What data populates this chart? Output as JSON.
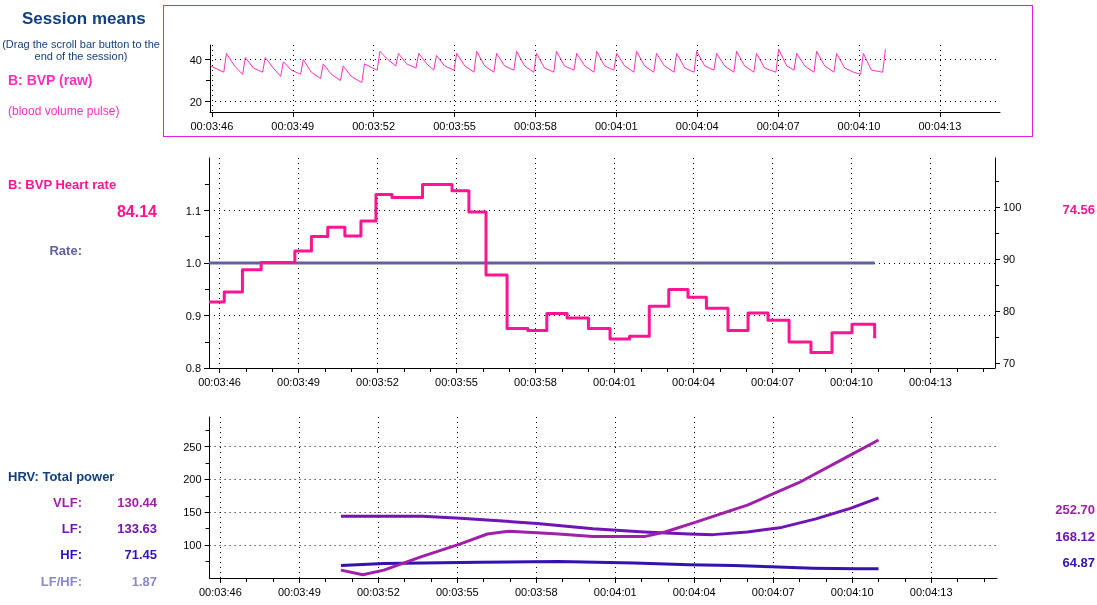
{
  "chart_data": [
    {
      "type": "line",
      "title": "Session means",
      "subtitle": "(Drag the scroll bar button to the end of the session)",
      "annotations": [
        "(blood volume pulse)"
      ],
      "grid": true,
      "marker": "none",
      "xlim": [
        225.93,
        255.23
      ],
      "xticks": [
        {
          "value": 226,
          "label": "00:03:46"
        },
        {
          "value": 229,
          "label": "00:03:49"
        },
        {
          "value": 232,
          "label": "00:03:52"
        },
        {
          "value": 235,
          "label": "00:03:55"
        },
        {
          "value": 238,
          "label": "00:03:58"
        },
        {
          "value": 241,
          "label": "00:04:01"
        },
        {
          "value": 244,
          "label": "00:04:04"
        },
        {
          "value": 247,
          "label": "00:04:07"
        },
        {
          "value": 250,
          "label": "00:04:10"
        },
        {
          "value": 253,
          "label": "00:04:13"
        }
      ],
      "ylim": [
        15,
        47
      ],
      "yticks": [
        20,
        {
          "value": 30,
          "label": null
        },
        40
      ],
      "series": [
        {
          "name": "B: BVP (raw)",
          "color": "#ff30c0",
          "x": [
            225.95,
            226.44,
            226.54,
            226.84,
            227.14,
            227.24,
            227.54,
            227.88,
            227.98,
            228.28,
            228.55,
            228.65,
            228.95,
            229.29,
            229.39,
            229.69,
            230.03,
            230.13,
            230.43,
            230.77,
            230.87,
            231.17,
            231.56,
            231.66,
            231.96,
            232.13,
            232.23,
            232.53,
            232.82,
            232.92,
            233.22,
            233.57,
            233.67,
            233.97,
            234.23,
            234.33,
            234.63,
            234.98,
            235.08,
            235.38,
            235.72,
            235.82,
            236.12,
            236.46,
            236.56,
            236.86,
            237.2,
            237.3,
            237.6,
            237.94,
            238.04,
            238.34,
            238.68,
            238.78,
            239.08,
            239.43,
            239.53,
            239.83,
            240.17,
            240.27,
            240.57,
            240.91,
            241.01,
            241.31,
            241.65,
            241.75,
            242.05,
            242.39,
            242.49,
            242.79,
            243.14,
            243.24,
            243.54,
            243.88,
            243.98,
            244.28,
            244.62,
            244.72,
            245.02,
            245.36,
            245.46,
            245.76,
            246.1,
            246.2,
            246.5,
            246.92,
            247.02,
            247.32,
            247.59,
            247.69,
            247.99,
            248.33,
            248.43,
            248.73,
            249.07,
            249.17,
            249.47,
            249.8,
            250.06,
            250.16,
            250.46,
            250.88,
            250.98
          ],
          "values": [
            37,
            34,
            43,
            37,
            33,
            41,
            36,
            34,
            41,
            36,
            32,
            39,
            35,
            33,
            40,
            34,
            31,
            38,
            33,
            30,
            37,
            32,
            29,
            38,
            36,
            35,
            44,
            40,
            37,
            43,
            38,
            36,
            43,
            38,
            35,
            42,
            37,
            35,
            43,
            37,
            34,
            44,
            37,
            34,
            43,
            37,
            35,
            44,
            37,
            34,
            43,
            36,
            34,
            44,
            37,
            35,
            43,
            37,
            34,
            44,
            37,
            35,
            43,
            37,
            34,
            44,
            37,
            34,
            43,
            37,
            34,
            43,
            36,
            34,
            44,
            37,
            35,
            43,
            37,
            34,
            44,
            37,
            34,
            43,
            36,
            34,
            45,
            37,
            35,
            43,
            37,
            34,
            44,
            37,
            34,
            43,
            36,
            34,
            33,
            43,
            35,
            34,
            45
          ]
        }
      ]
    },
    {
      "type": "step",
      "grid": true,
      "marker": "none",
      "annotations": [
        "84.14",
        "74.56"
      ],
      "xlim": [
        225.6,
        255.45
      ],
      "xticks": [
        {
          "value": 226,
          "label": "00:03:46"
        },
        {
          "value": 227,
          "label": null
        },
        {
          "value": 228,
          "label": null
        },
        {
          "value": 229,
          "label": "00:03:49"
        },
        {
          "value": 230,
          "label": null
        },
        {
          "value": 231,
          "label": null
        },
        {
          "value": 232,
          "label": "00:03:52"
        },
        {
          "value": 233,
          "label": null
        },
        {
          "value": 234,
          "label": null
        },
        {
          "value": 235,
          "label": "00:03:55"
        },
        {
          "value": 236,
          "label": null
        },
        {
          "value": 237,
          "label": null
        },
        {
          "value": 238,
          "label": "00:03:58"
        },
        {
          "value": 239,
          "label": null
        },
        {
          "value": 240,
          "label": null
        },
        {
          "value": 241,
          "label": "00:04:01"
        },
        {
          "value": 242,
          "label": null
        },
        {
          "value": 243,
          "label": null
        },
        {
          "value": 244,
          "label": "00:04:04"
        },
        {
          "value": 245,
          "label": null
        },
        {
          "value": 246,
          "label": null
        },
        {
          "value": 247,
          "label": "00:04:07"
        },
        {
          "value": 248,
          "label": null
        },
        {
          "value": 249,
          "label": null
        },
        {
          "value": 250,
          "label": "00:04:10"
        },
        {
          "value": 251,
          "label": null
        },
        {
          "value": 252,
          "label": null
        },
        {
          "value": 253,
          "label": "00:04:13"
        },
        {
          "value": 254,
          "label": null
        },
        {
          "value": 255,
          "label": null
        }
      ],
      "ylim": [
        0.8,
        1.2
      ],
      "yticks": [
        0.8,
        {
          "value": 0.85,
          "label": null
        },
        0.9,
        {
          "value": 0.95,
          "label": null
        },
        {
          "value": 1.0,
          "label": "1.0"
        },
        {
          "value": 1.05,
          "label": null
        },
        1.1,
        {
          "value": 1.15,
          "label": null
        }
      ],
      "y2lim": [
        69,
        109.4
      ],
      "y2ticks": [
        70,
        {
          "value": 75,
          "label": null
        },
        80,
        {
          "value": 85,
          "label": null
        },
        90,
        {
          "value": 95,
          "label": null
        },
        100,
        {
          "value": 105,
          "label": null
        }
      ],
      "series": [
        {
          "name": "B: BVP Heart rate",
          "axis": "y2",
          "color": "#ff1493",
          "x": [
            225.6,
            226.18,
            226.87,
            227.58,
            228.86,
            229.49,
            230.11,
            230.76,
            231.37,
            231.94,
            232.55,
            233.71,
            234.83,
            235.47,
            236.12,
            236.92,
            237.71,
            238.43,
            239.2,
            240.01,
            240.83,
            241.57,
            242.32,
            243.06,
            243.79,
            244.49,
            245.31,
            246.07,
            246.83,
            247.63,
            248.46,
            249.26,
            250.02,
            250.88
          ],
          "values": [
            81.7,
            83.6,
            87.9,
            89.3,
            91.5,
            94.3,
            96.1,
            94.4,
            97.3,
            102.4,
            101.8,
            104.3,
            103.1,
            99.0,
            86.9,
            76.6,
            76.2,
            79.5,
            78.6,
            76.6,
            74.6,
            75.1,
            80.9,
            84.1,
            82.6,
            80.5,
            76.2,
            79.6,
            78.2,
            74.0,
            72.0,
            75.8,
            77.4,
            74.7
          ]
        },
        {
          "name": "Rate:",
          "type": "line",
          "color": "#6062a0",
          "x": [
            225.6,
            250.88
          ],
          "values": [
            1.0,
            1.0
          ]
        }
      ]
    },
    {
      "type": "line",
      "title": "HRV: Total power",
      "grid": true,
      "marker": "none",
      "annotations": [
        "130.44",
        "133.63",
        "71.45",
        "LF/HF:",
        "1.87",
        "252.70",
        "168.12",
        "64.87"
      ],
      "xlim": [
        225.59,
        255.5
      ],
      "xticks": [
        {
          "value": 226,
          "label": "00:03:46"
        },
        {
          "value": 227,
          "label": null
        },
        {
          "value": 228,
          "label": null
        },
        {
          "value": 229,
          "label": "00:03:49"
        },
        {
          "value": 230,
          "label": null
        },
        {
          "value": 231,
          "label": null
        },
        {
          "value": 232,
          "label": "00:03:52"
        },
        {
          "value": 233,
          "label": null
        },
        {
          "value": 234,
          "label": null
        },
        {
          "value": 235,
          "label": "00:03:55"
        },
        {
          "value": 236,
          "label": null
        },
        {
          "value": 237,
          "label": null
        },
        {
          "value": 238,
          "label": "00:03:58"
        },
        {
          "value": 239,
          "label": null
        },
        {
          "value": 240,
          "label": null
        },
        {
          "value": 241,
          "label": "00:04:01"
        },
        {
          "value": 242,
          "label": null
        },
        {
          "value": 243,
          "label": null
        },
        {
          "value": 244,
          "label": "00:04:04"
        },
        {
          "value": 245,
          "label": null
        },
        {
          "value": 246,
          "label": null
        },
        {
          "value": 247,
          "label": "00:04:07"
        },
        {
          "value": 248,
          "label": null
        },
        {
          "value": 249,
          "label": null
        },
        {
          "value": 250,
          "label": "00:04:10"
        },
        {
          "value": 251,
          "label": null
        },
        {
          "value": 252,
          "label": null
        },
        {
          "value": 253,
          "label": "00:04:13"
        },
        {
          "value": 254,
          "label": null
        },
        {
          "value": 255,
          "label": null
        }
      ],
      "ylim": [
        50,
        295
      ],
      "yticks": [
        {
          "value": 75,
          "label": null
        },
        100,
        {
          "value": 125,
          "label": null
        },
        150,
        {
          "value": 175,
          "label": null
        },
        200,
        {
          "value": 225,
          "label": null
        },
        250,
        {
          "value": 275,
          "label": null
        }
      ],
      "series": [
        {
          "name": "VLF:",
          "color": "#a020a8",
          "x": [
            230.58,
            231.41,
            232.21,
            233.67,
            235.12,
            236.14,
            236.94,
            238.03,
            238.84,
            240.15,
            242.1,
            242.89,
            244.06,
            246.02,
            247.97,
            249.93,
            251.0
          ],
          "values": [
            62,
            55,
            62,
            83,
            102,
            117,
            121,
            119,
            117,
            113,
            113,
            120,
            135,
            161,
            195,
            237,
            260
          ]
        },
        {
          "name": "LF:",
          "color": "#7014b4",
          "x": [
            230.58,
            233.67,
            235.12,
            236.57,
            238.03,
            238.84,
            240.15,
            242.1,
            243.8,
            244.71,
            246.02,
            247.32,
            248.62,
            249.93,
            251.0
          ],
          "values": [
            144,
            144,
            141,
            137,
            133,
            130,
            125,
            120,
            117,
            116,
            120,
            127,
            140,
            156,
            172
          ]
        },
        {
          "name": "HF:",
          "color": "#3412b0",
          "x": [
            230.58,
            232.21,
            235.85,
            238.84,
            241.72,
            243.8,
            245.5,
            246.93,
            248.5,
            250.19,
            251.0
          ],
          "values": [
            69,
            72,
            74,
            75,
            73,
            70,
            69,
            67,
            65,
            64,
            64
          ]
        }
      ]
    }
  ]
}
